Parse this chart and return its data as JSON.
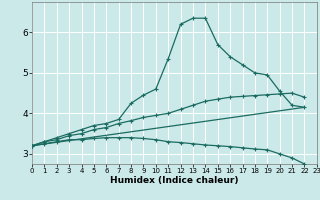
{
  "xlabel": "Humidex (Indice chaleur)",
  "background_color": "#cce9ea",
  "grid_color": "#ffffff",
  "line_color": "#1a6b60",
  "x": [
    0,
    1,
    2,
    3,
    4,
    5,
    6,
    7,
    8,
    9,
    10,
    11,
    12,
    13,
    14,
    15,
    16,
    17,
    18,
    19,
    20,
    21,
    22,
    23
  ],
  "line_max": [
    3.2,
    3.3,
    3.4,
    3.5,
    3.6,
    3.7,
    3.75,
    3.85,
    4.25,
    4.45,
    4.6,
    5.35,
    6.2,
    6.35,
    6.35,
    5.7,
    5.4,
    5.2,
    5.0,
    4.95,
    4.55,
    4.2,
    4.15,
    null
  ],
  "line_avg": [
    3.2,
    3.3,
    3.35,
    3.45,
    3.5,
    3.6,
    3.65,
    3.75,
    3.82,
    3.9,
    3.95,
    4.0,
    4.1,
    4.2,
    4.3,
    4.35,
    4.4,
    4.42,
    4.44,
    4.46,
    4.48,
    4.5,
    4.4,
    null
  ],
  "line_min": [
    3.2,
    3.25,
    3.3,
    3.35,
    3.35,
    3.38,
    3.4,
    3.4,
    3.4,
    3.38,
    3.35,
    3.3,
    3.28,
    3.25,
    3.22,
    3.2,
    3.18,
    3.15,
    3.12,
    3.1,
    3.0,
    2.9,
    2.75,
    null
  ],
  "line_diag": [
    [
      0,
      3.2
    ],
    [
      22,
      4.15
    ]
  ],
  "xlim": [
    0,
    23
  ],
  "ylim": [
    2.75,
    6.75
  ],
  "yticks": [
    3,
    4,
    5,
    6
  ],
  "xticks": [
    0,
    1,
    2,
    3,
    4,
    5,
    6,
    7,
    8,
    9,
    10,
    11,
    12,
    13,
    14,
    15,
    16,
    17,
    18,
    19,
    20,
    21,
    22,
    23
  ],
  "xlabel_fontsize": 6.5,
  "tick_fontsize_x": 5.0,
  "tick_fontsize_y": 6.5,
  "lw": 0.9,
  "marker_size": 3.0
}
